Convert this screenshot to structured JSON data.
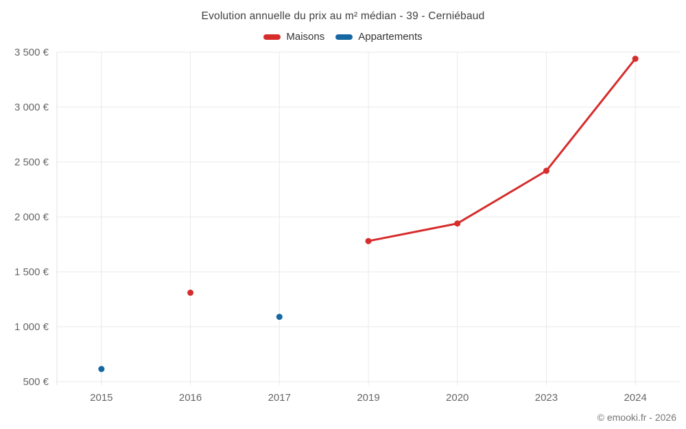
{
  "title": "Evolution annuelle du prix au m² médian - 39 - Cerniébaud",
  "copyright": "© emooki.fr - 2026",
  "colors": {
    "maisons": "#d62c2c",
    "appartements": "#1668a2",
    "grid": "#e8e8e8",
    "axis_label": "#666666",
    "title_text": "#3f3f3f"
  },
  "chart_data": {
    "type": "line",
    "categories": [
      "2015",
      "2016",
      "2017",
      "2019",
      "2020",
      "2023",
      "2024"
    ],
    "series": [
      {
        "name": "Maisons",
        "color": "#d62c2c",
        "values": [
          null,
          1310,
          null,
          1780,
          1940,
          2420,
          3440
        ]
      },
      {
        "name": "Appartements",
        "color": "#1668a2",
        "values": [
          615,
          null,
          1090,
          null,
          null,
          null,
          null
        ]
      }
    ],
    "title": "Evolution annuelle du prix au m² médian - 39 - Cerniébaud",
    "xlabel": "",
    "ylabel": "",
    "ylim": [
      500,
      3500
    ],
    "ytick_step": 500,
    "yticks": [
      "500 €",
      "1 000 €",
      "1 500 €",
      "2 000 €",
      "2 500 €",
      "3 000 €",
      "3 500 €"
    ],
    "grid": true,
    "legend_position": "top",
    "connect_nulls": false
  }
}
